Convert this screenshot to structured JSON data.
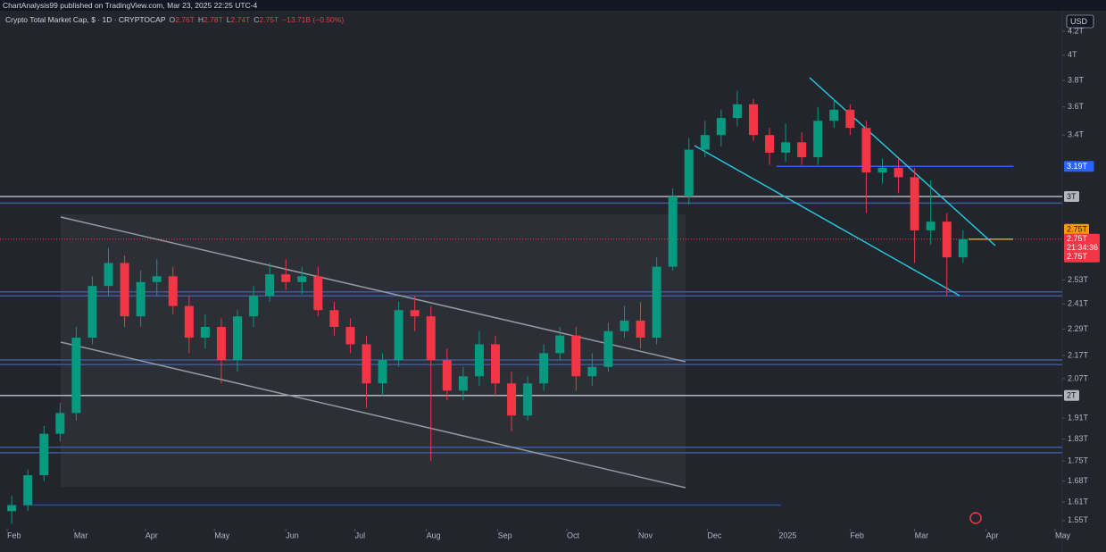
{
  "publisher": "ChartAnalysis99 published on TradingView.com, Mar 23, 2025 22:25 UTC-4",
  "chart_data": {
    "type": "candlestick",
    "title": "Crypto Total Market Cap, $ · 1D · CRYPTOCAP",
    "ohlc_legend": [
      {
        "key": "O",
        "value": "2.76T"
      },
      {
        "key": "H",
        "value": "2.78T"
      },
      {
        "key": "L",
        "value": "2.74T"
      },
      {
        "key": "C",
        "value": "2.75T"
      },
      {
        "key": "",
        "value": "−13.71B (−0.50%)"
      }
    ],
    "currency": "USD",
    "up_color": "#089981",
    "down_color": "#f23645",
    "log_scale": true,
    "grid": false,
    "xlim": [
      -3.1,
      458.1
    ],
    "ylim": [
      1.53,
      4.38
    ],
    "xticks": [
      {
        "value": 0,
        "label": "Feb"
      },
      {
        "value": 29,
        "label": "Mar"
      },
      {
        "value": 60,
        "label": "Apr"
      },
      {
        "value": 90,
        "label": "May"
      },
      {
        "value": 121,
        "label": "Jun"
      },
      {
        "value": 151,
        "label": "Jul"
      },
      {
        "value": 182,
        "label": "Aug"
      },
      {
        "value": 213,
        "label": "Sep"
      },
      {
        "value": 243,
        "label": "Oct"
      },
      {
        "value": 274,
        "label": "Nov"
      },
      {
        "value": 304,
        "label": "Dec"
      },
      {
        "value": 335,
        "label": "2025"
      },
      {
        "value": 366,
        "label": "Feb"
      },
      {
        "value": 394,
        "label": "Mar"
      },
      {
        "value": 425,
        "label": "Apr"
      },
      {
        "value": 455,
        "label": "May"
      }
    ],
    "yticks": [
      {
        "value": 4.2,
        "label": "4.2T"
      },
      {
        "value": 4,
        "label": "4T"
      },
      {
        "value": 3.8,
        "label": "3.8T"
      },
      {
        "value": 3.6,
        "label": "3.6T"
      },
      {
        "value": 3.4,
        "label": "3.4T"
      },
      {
        "value": 2.53,
        "label": "2.53T"
      },
      {
        "value": 2.41,
        "label": "2.41T"
      },
      {
        "value": 2.29,
        "label": "2.29T"
      },
      {
        "value": 2.17,
        "label": "2.17T"
      },
      {
        "value": 2.07,
        "label": "2.07T"
      },
      {
        "value": 1.91,
        "label": "1.91T"
      },
      {
        "value": 1.83,
        "label": "1.83T"
      },
      {
        "value": 1.75,
        "label": "1.75T"
      },
      {
        "value": 1.68,
        "label": "1.68T"
      },
      {
        "value": 1.61,
        "label": "1.61T"
      },
      {
        "value": 1.55,
        "label": "1.55T"
      }
    ],
    "x": [
      2,
      9,
      16,
      23,
      30,
      37,
      44,
      51,
      58,
      65,
      72,
      79,
      86,
      93,
      100,
      107,
      114,
      121,
      128,
      135,
      142,
      149,
      156,
      163,
      170,
      177,
      184,
      191,
      198,
      205,
      212,
      219,
      226,
      233,
      240,
      247,
      254,
      261,
      268,
      275,
      282,
      289,
      296,
      303,
      310,
      317,
      324,
      331,
      338,
      345,
      352,
      359,
      366,
      373,
      380,
      387,
      394,
      401,
      408,
      415
    ],
    "open": [
      1.58,
      1.6,
      1.7,
      1.85,
      1.93,
      2.25,
      2.5,
      2.62,
      2.35,
      2.52,
      2.55,
      2.4,
      2.25,
      2.3,
      2.15,
      2.35,
      2.45,
      2.56,
      2.52,
      2.55,
      2.38,
      2.3,
      2.22,
      2.05,
      2.15,
      2.38,
      2.35,
      2.15,
      2.02,
      2.08,
      2.22,
      2.05,
      1.92,
      2.05,
      2.18,
      2.26,
      2.08,
      2.12,
      2.28,
      2.33,
      2.25,
      2.6,
      3.0,
      3.3,
      3.4,
      3.52,
      3.62,
      3.4,
      3.28,
      3.35,
      3.25,
      3.5,
      3.58,
      3.45,
      3.15,
      3.18,
      3.12,
      2.8,
      2.85,
      2.65
    ],
    "high": [
      1.63,
      1.72,
      1.88,
      1.97,
      2.3,
      2.55,
      2.7,
      2.66,
      2.58,
      2.64,
      2.6,
      2.45,
      2.36,
      2.34,
      2.38,
      2.5,
      2.62,
      2.64,
      2.6,
      2.6,
      2.42,
      2.34,
      2.26,
      2.18,
      2.42,
      2.45,
      2.4,
      2.2,
      2.12,
      2.28,
      2.26,
      2.1,
      2.08,
      2.22,
      2.3,
      2.3,
      2.18,
      2.32,
      2.4,
      2.42,
      2.65,
      3.05,
      3.38,
      3.5,
      3.58,
      3.72,
      3.66,
      3.45,
      3.48,
      3.42,
      3.6,
      3.66,
      3.62,
      3.5,
      3.24,
      3.24,
      3.18,
      3.1,
      2.9,
      2.8
    ],
    "low": [
      1.54,
      1.58,
      1.68,
      1.82,
      1.9,
      2.22,
      2.45,
      2.3,
      2.3,
      2.45,
      2.36,
      2.18,
      2.2,
      2.05,
      2.1,
      2.3,
      2.42,
      2.48,
      2.46,
      2.35,
      2.26,
      2.18,
      1.95,
      2.0,
      2.12,
      2.28,
      1.75,
      1.98,
      1.98,
      2.04,
      2.0,
      1.86,
      1.9,
      2.02,
      2.15,
      2.02,
      2.04,
      2.1,
      2.25,
      2.2,
      2.22,
      2.58,
      2.95,
      3.25,
      3.32,
      3.46,
      3.36,
      3.2,
      3.22,
      3.2,
      3.2,
      3.45,
      3.4,
      2.9,
      3.08,
      3.02,
      2.62,
      2.72,
      2.45,
      2.62
    ],
    "close": [
      1.6,
      1.7,
      1.85,
      1.93,
      2.25,
      2.5,
      2.62,
      2.35,
      2.52,
      2.55,
      2.4,
      2.25,
      2.3,
      2.15,
      2.35,
      2.45,
      2.56,
      2.52,
      2.55,
      2.38,
      2.3,
      2.22,
      2.05,
      2.15,
      2.38,
      2.35,
      2.15,
      2.02,
      2.08,
      2.22,
      2.05,
      1.92,
      2.05,
      2.18,
      2.26,
      2.08,
      2.12,
      2.28,
      2.33,
      2.25,
      2.6,
      3.0,
      3.3,
      3.4,
      3.52,
      3.62,
      3.4,
      3.28,
      3.35,
      3.25,
      3.5,
      3.58,
      3.45,
      3.15,
      3.18,
      3.12,
      2.8,
      2.85,
      2.65,
      2.75
    ],
    "levels": [
      {
        "value": 3.19,
        "color": "#2962ff",
        "label": "3.19T",
        "start": 334,
        "end": 437
      },
      {
        "value": 3.0,
        "color": "#b2b5be",
        "label": "3T"
      },
      {
        "value": 2.96,
        "color": "#3d5a9e"
      },
      {
        "value": 2.47,
        "color": "#3d5a9e"
      },
      {
        "value": 2.45,
        "color": "#3d5a9e"
      },
      {
        "value": 2.15,
        "color": "#3d5a9e"
      },
      {
        "value": 2.13,
        "color": "#3d5a9e"
      },
      {
        "value": 2.0,
        "color": "#b2b5be",
        "label": "2T"
      },
      {
        "value": 1.8,
        "color": "#3d5a9e"
      },
      {
        "value": 1.78,
        "color": "#3d5a9e"
      },
      {
        "value": 1.6,
        "color": "#2947a8",
        "start": 7,
        "end": 336
      }
    ],
    "alert": {
      "value": 2.75,
      "label": "2.75T",
      "color": "#ff9800"
    },
    "last_price": {
      "value": 2.75,
      "label": "2.75T",
      "countdown": "21:34:36",
      "close_label": "2.75T",
      "color": "#f23645"
    }
  }
}
